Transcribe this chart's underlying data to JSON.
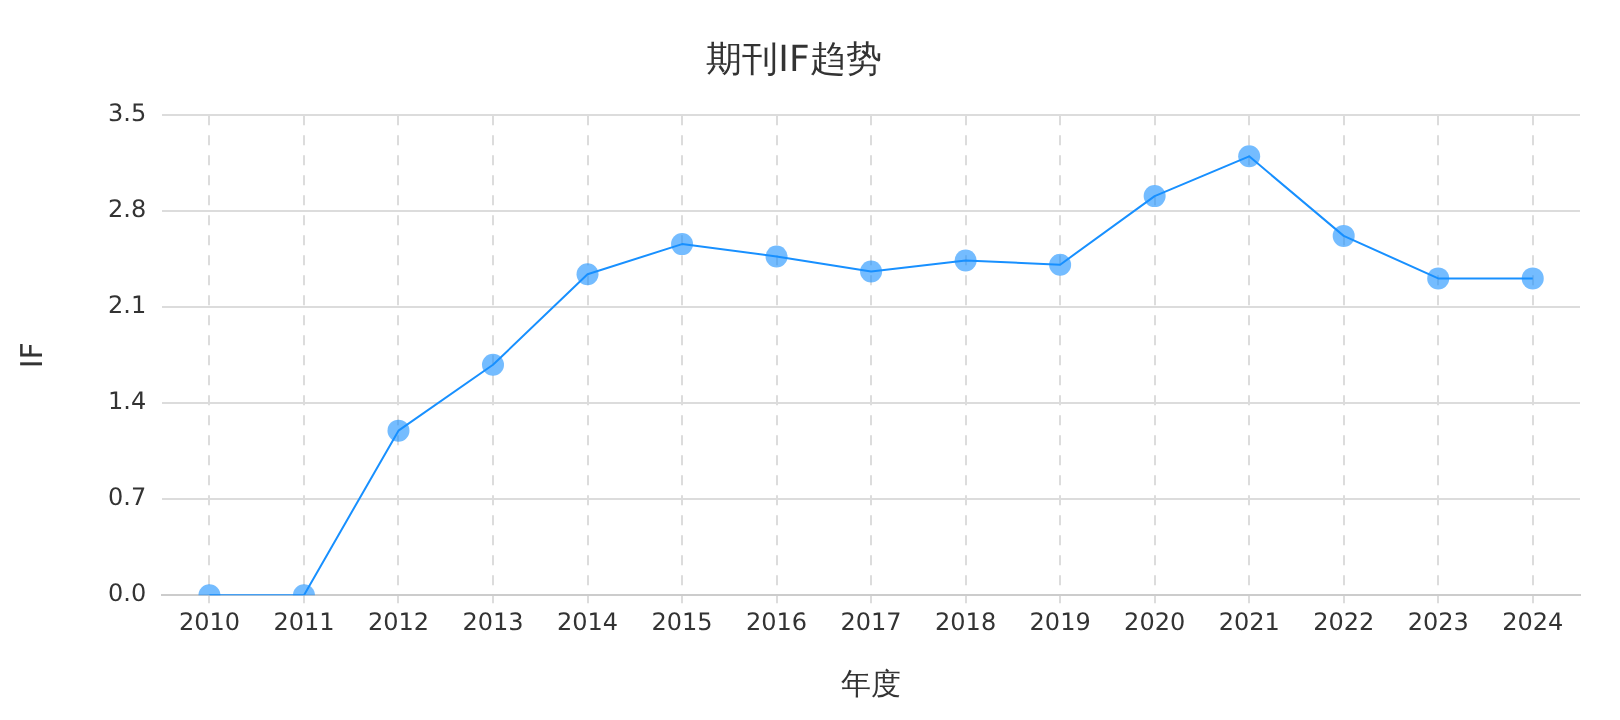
{
  "chart_data": {
    "type": "line",
    "title": "期刊IF趋势",
    "xlabel": "年度",
    "ylabel": "IF",
    "categories": [
      "2010",
      "2011",
      "2012",
      "2013",
      "2014",
      "2015",
      "2016",
      "2017",
      "2018",
      "2019",
      "2020",
      "2021",
      "2022",
      "2023",
      "2024"
    ],
    "series": [
      {
        "color": "#1890ff",
        "values": [
          0,
          0,
          1.2,
          1.68,
          2.34,
          2.56,
          2.47,
          2.36,
          2.44,
          2.41,
          2.91,
          3.2,
          2.62,
          2.31,
          2.31
        ]
      }
    ],
    "ylim": [
      0,
      3.5
    ],
    "yticks": [
      {
        "value": 0,
        "label": "0.0"
      },
      {
        "value": 0.7,
        "label": "0.7"
      },
      {
        "value": 1.4,
        "label": "1.4"
      },
      {
        "value": 2.1,
        "label": "2.1"
      },
      {
        "value": 2.8,
        "label": "2.8"
      },
      {
        "value": 3.5,
        "label": "3.5"
      }
    ],
    "grid": true,
    "legend": false,
    "marker": "circle",
    "line_style": "solid"
  }
}
